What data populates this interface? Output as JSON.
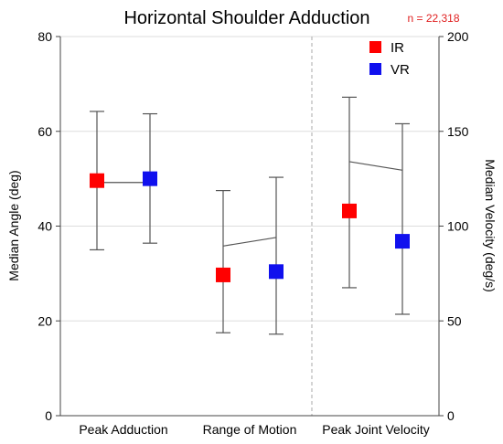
{
  "chart_data": {
    "type": "scatter",
    "title": "Horizontal Shoulder Adduction",
    "annotation": "n = 22,318",
    "categories": [
      "Peak Adduction",
      "Range of Motion",
      "Peak Joint Velocity"
    ],
    "ylabel_left": "Median Angle (deg)",
    "ylabel_right": "Median Velocity (deg/s)",
    "ylim_left": [
      0,
      80
    ],
    "ylim_right": [
      0,
      200
    ],
    "yticks_left": [
      "0",
      "20",
      "40",
      "60",
      "80"
    ],
    "yticks_right": [
      "0",
      "50",
      "100",
      "150",
      "200"
    ],
    "grid": true,
    "legend_position": "top-right",
    "series": [
      {
        "name": "IR",
        "color": "#ff0000",
        "axis": [
          "left",
          "left",
          "right"
        ],
        "values": [
          49.6,
          29.7,
          108
        ],
        "lower": [
          35,
          17.5,
          67.5
        ],
        "upper": [
          64.2,
          47.5,
          168
        ]
      },
      {
        "name": "VR",
        "color": "#1010ee",
        "axis": [
          "left",
          "left",
          "right"
        ],
        "values": [
          50.0,
          30.4,
          92
        ],
        "lower": [
          36.4,
          17.2,
          53.5
        ],
        "upper": [
          63.7,
          50.3,
          154
        ]
      }
    ],
    "connector_lines": [
      {
        "axis": "left",
        "from": 49.2,
        "to": 49.2
      },
      {
        "axis": "left",
        "from": 35.8,
        "to": 37.6
      },
      {
        "axis": "right",
        "from": 134,
        "to": 129.5
      }
    ]
  }
}
